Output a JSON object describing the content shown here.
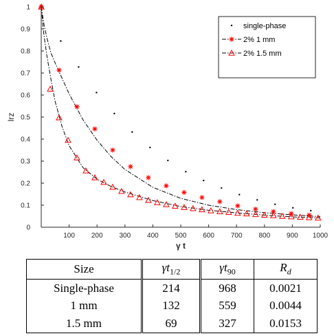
{
  "chart_data": {
    "type": "scatter",
    "xlabel": "γ t",
    "ylabel": "lrz",
    "xlim": [
      0,
      1000
    ],
    "ylim": [
      0,
      1
    ],
    "xticks": [
      100,
      200,
      300,
      400,
      500,
      600,
      700,
      800,
      900,
      1000
    ],
    "yticks": [
      0,
      0.1,
      0.2,
      0.3,
      0.4,
      0.5,
      0.6,
      0.7,
      0.8,
      0.9,
      1
    ],
    "grid": false,
    "legend_position": "top-right",
    "series": [
      {
        "name": "single-phase",
        "marker": "dot",
        "color": "#000000",
        "x": [
          0,
          70,
          134,
          198,
          262,
          326,
          390,
          454,
          518,
          582,
          646,
          710,
          774,
          838,
          902,
          966
        ],
        "y": [
          1.0,
          0.845,
          0.727,
          0.611,
          0.516,
          0.432,
          0.362,
          0.303,
          0.252,
          0.212,
          0.178,
          0.148,
          0.124,
          0.104,
          0.088,
          0.075
        ]
      },
      {
        "name": "2% 1 mm",
        "marker": "star",
        "color": "#ff0000",
        "x": [
          0,
          64,
          128,
          192,
          256,
          320,
          384,
          448,
          512,
          576,
          640,
          704,
          768,
          832,
          896,
          960
        ],
        "y": [
          1.0,
          0.713,
          0.547,
          0.446,
          0.35,
          0.275,
          0.225,
          0.188,
          0.158,
          0.135,
          0.116,
          0.097,
          0.082,
          0.071,
          0.062,
          0.055
        ]
      },
      {
        "name": "2% 1.5 mm",
        "marker": "triangle",
        "color": "#ff0000",
        "x": [
          0,
          32,
          64,
          96,
          128,
          160,
          192,
          224,
          256,
          288,
          320,
          352,
          384,
          416,
          448,
          480,
          512,
          544,
          576,
          608,
          640,
          672,
          704,
          736,
          768,
          800,
          832,
          864,
          896,
          928,
          960,
          992
        ],
        "y": [
          1.0,
          0.627,
          0.497,
          0.395,
          0.315,
          0.256,
          0.225,
          0.204,
          0.182,
          0.163,
          0.148,
          0.135,
          0.122,
          0.112,
          0.103,
          0.096,
          0.09,
          0.085,
          0.08,
          0.075,
          0.071,
          0.068,
          0.064,
          0.061,
          0.058,
          0.055,
          0.053,
          0.05,
          0.048,
          0.046,
          0.044,
          0.042
        ]
      }
    ],
    "fit_curves": [
      {
        "series": "2% 1 mm",
        "style": "dash-dot",
        "x": [
          0,
          5,
          10,
          20,
          35,
          50,
          75,
          100,
          150,
          200,
          250,
          300,
          400,
          500,
          600,
          700,
          800,
          900,
          1000
        ],
        "y": [
          1.0,
          0.96,
          0.92,
          0.86,
          0.79,
          0.745,
          0.675,
          0.605,
          0.487,
          0.395,
          0.321,
          0.262,
          0.181,
          0.131,
          0.1,
          0.08,
          0.066,
          0.056,
          0.048
        ]
      },
      {
        "series": "2% 1.5 mm",
        "style": "dash-dot",
        "x": [
          0,
          5,
          10,
          20,
          35,
          50,
          75,
          100,
          150,
          200,
          250,
          300,
          400,
          500,
          600,
          700,
          800,
          900,
          1000
        ],
        "y": [
          1.0,
          0.93,
          0.87,
          0.78,
          0.67,
          0.57,
          0.455,
          0.37,
          0.27,
          0.218,
          0.185,
          0.16,
          0.121,
          0.094,
          0.077,
          0.065,
          0.055,
          0.047,
          0.042
        ]
      }
    ]
  },
  "table": {
    "headers": [
      "Size",
      "γt",
      "1/2",
      "γt",
      "90",
      "R",
      "d"
    ],
    "rows": [
      [
        "Single-phase",
        "214",
        "968",
        "0.0021"
      ],
      [
        "1 mm",
        "132",
        "559",
        "0.0044"
      ],
      [
        "1.5 mm",
        "69",
        "327",
        "0.0153"
      ]
    ]
  }
}
